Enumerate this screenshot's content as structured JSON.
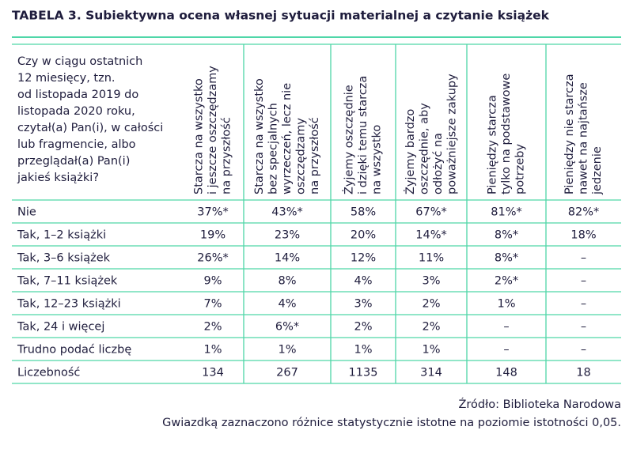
{
  "title": "TABELA 3. Subiektywna ocena własnej sytuacji materialnej a czytanie książek",
  "table": {
    "question": [
      "Czy w ciągu ostatnich",
      "12 miesięcy, tzn.",
      "od listopada 2019 do",
      "listopada 2020 roku,",
      "czytał(a) Pan(i), w całości",
      "lub fragmencie, albo",
      "przeglądał(a) Pan(i)",
      "jakieś książki?"
    ],
    "columns": [
      [
        "Starcza na wszystko",
        "i jeszcze oszczędzamy",
        "na przyszłość"
      ],
      [
        "Starcza na wszystko",
        "bez specjalnych",
        "wyrzeczeń, lecz nie",
        "oszczędzamy",
        "na przyszłość"
      ],
      [
        "Żyjemy oszczędnie",
        "i dzięki temu starcza",
        "na wszystko"
      ],
      [
        "Żyjemy bardzo",
        "oszczędnie, aby",
        "odłożyć na",
        "poważniejsze zakupy"
      ],
      [
        "Pieniędzy starcza",
        "tylko na podstawowe",
        "potrzeby"
      ],
      [
        "Pieniędzy nie starcza",
        "nawet na najtańsze",
        "jedzenie"
      ]
    ],
    "rows": [
      [
        "Nie",
        "37%*",
        "43%*",
        "58%",
        "67%*",
        "81%*",
        "82%*"
      ],
      [
        "Tak, 1–2 książki",
        "19%",
        "23%",
        "20%",
        "14%*",
        "8%*",
        "18%"
      ],
      [
        "Tak, 3–6 książek",
        "26%*",
        "14%",
        "12%",
        "11%",
        "8%*",
        "–"
      ],
      [
        "Tak, 7–11 książek",
        "9%",
        "8%",
        "4%",
        "3%",
        "2%*",
        "–"
      ],
      [
        "Tak, 12–23 książki",
        "7%",
        "4%",
        "3%",
        "2%",
        "1%",
        "–"
      ],
      [
        "Tak, 24 i więcej",
        "2%",
        "6%*",
        "2%",
        "2%",
        "–",
        "–"
      ],
      [
        "Trudno podać liczbę",
        "1%",
        "1%",
        "1%",
        "1%",
        "–",
        "–"
      ],
      [
        "Liczebność",
        "134",
        "267",
        "1135",
        "314",
        "148",
        "18"
      ]
    ]
  },
  "footer": {
    "source": "Źródło: Biblioteka Narodowa",
    "note": "Gwiazdką zaznaczono różnice statystycznie istotne na poziomie istotności 0,05."
  }
}
